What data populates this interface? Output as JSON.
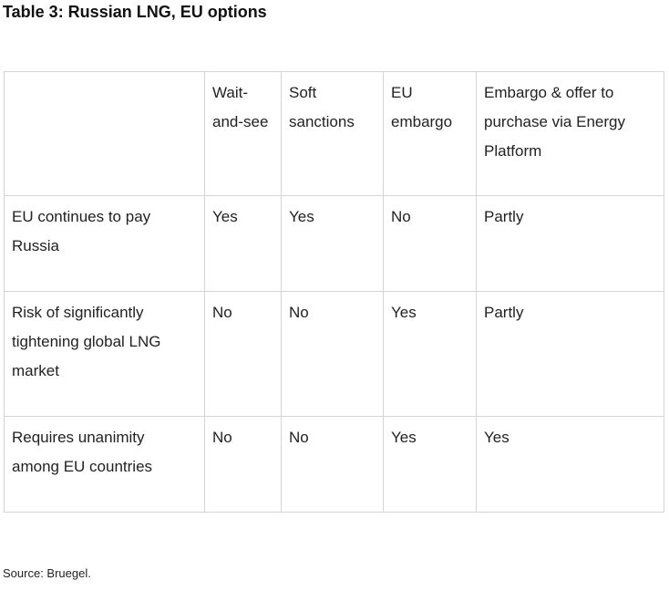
{
  "title": "Table 3: Russian LNG, EU options",
  "table": {
    "headers": [
      "",
      "Wait-and-see",
      "Soft sanctions",
      "EU embargo",
      "Embargo & offer to purchase via Energy Platform"
    ],
    "rows": [
      [
        "EU continues to pay Russia",
        "Yes",
        "Yes",
        "No",
        "Partly"
      ],
      [
        "Risk of significantly tightening global LNG market",
        "No",
        "No",
        "Yes",
        "Partly"
      ],
      [
        "Requires unanimity among EU countries",
        "No",
        "No",
        "Yes",
        "Yes"
      ]
    ]
  },
  "source": "Source: Bruegel."
}
